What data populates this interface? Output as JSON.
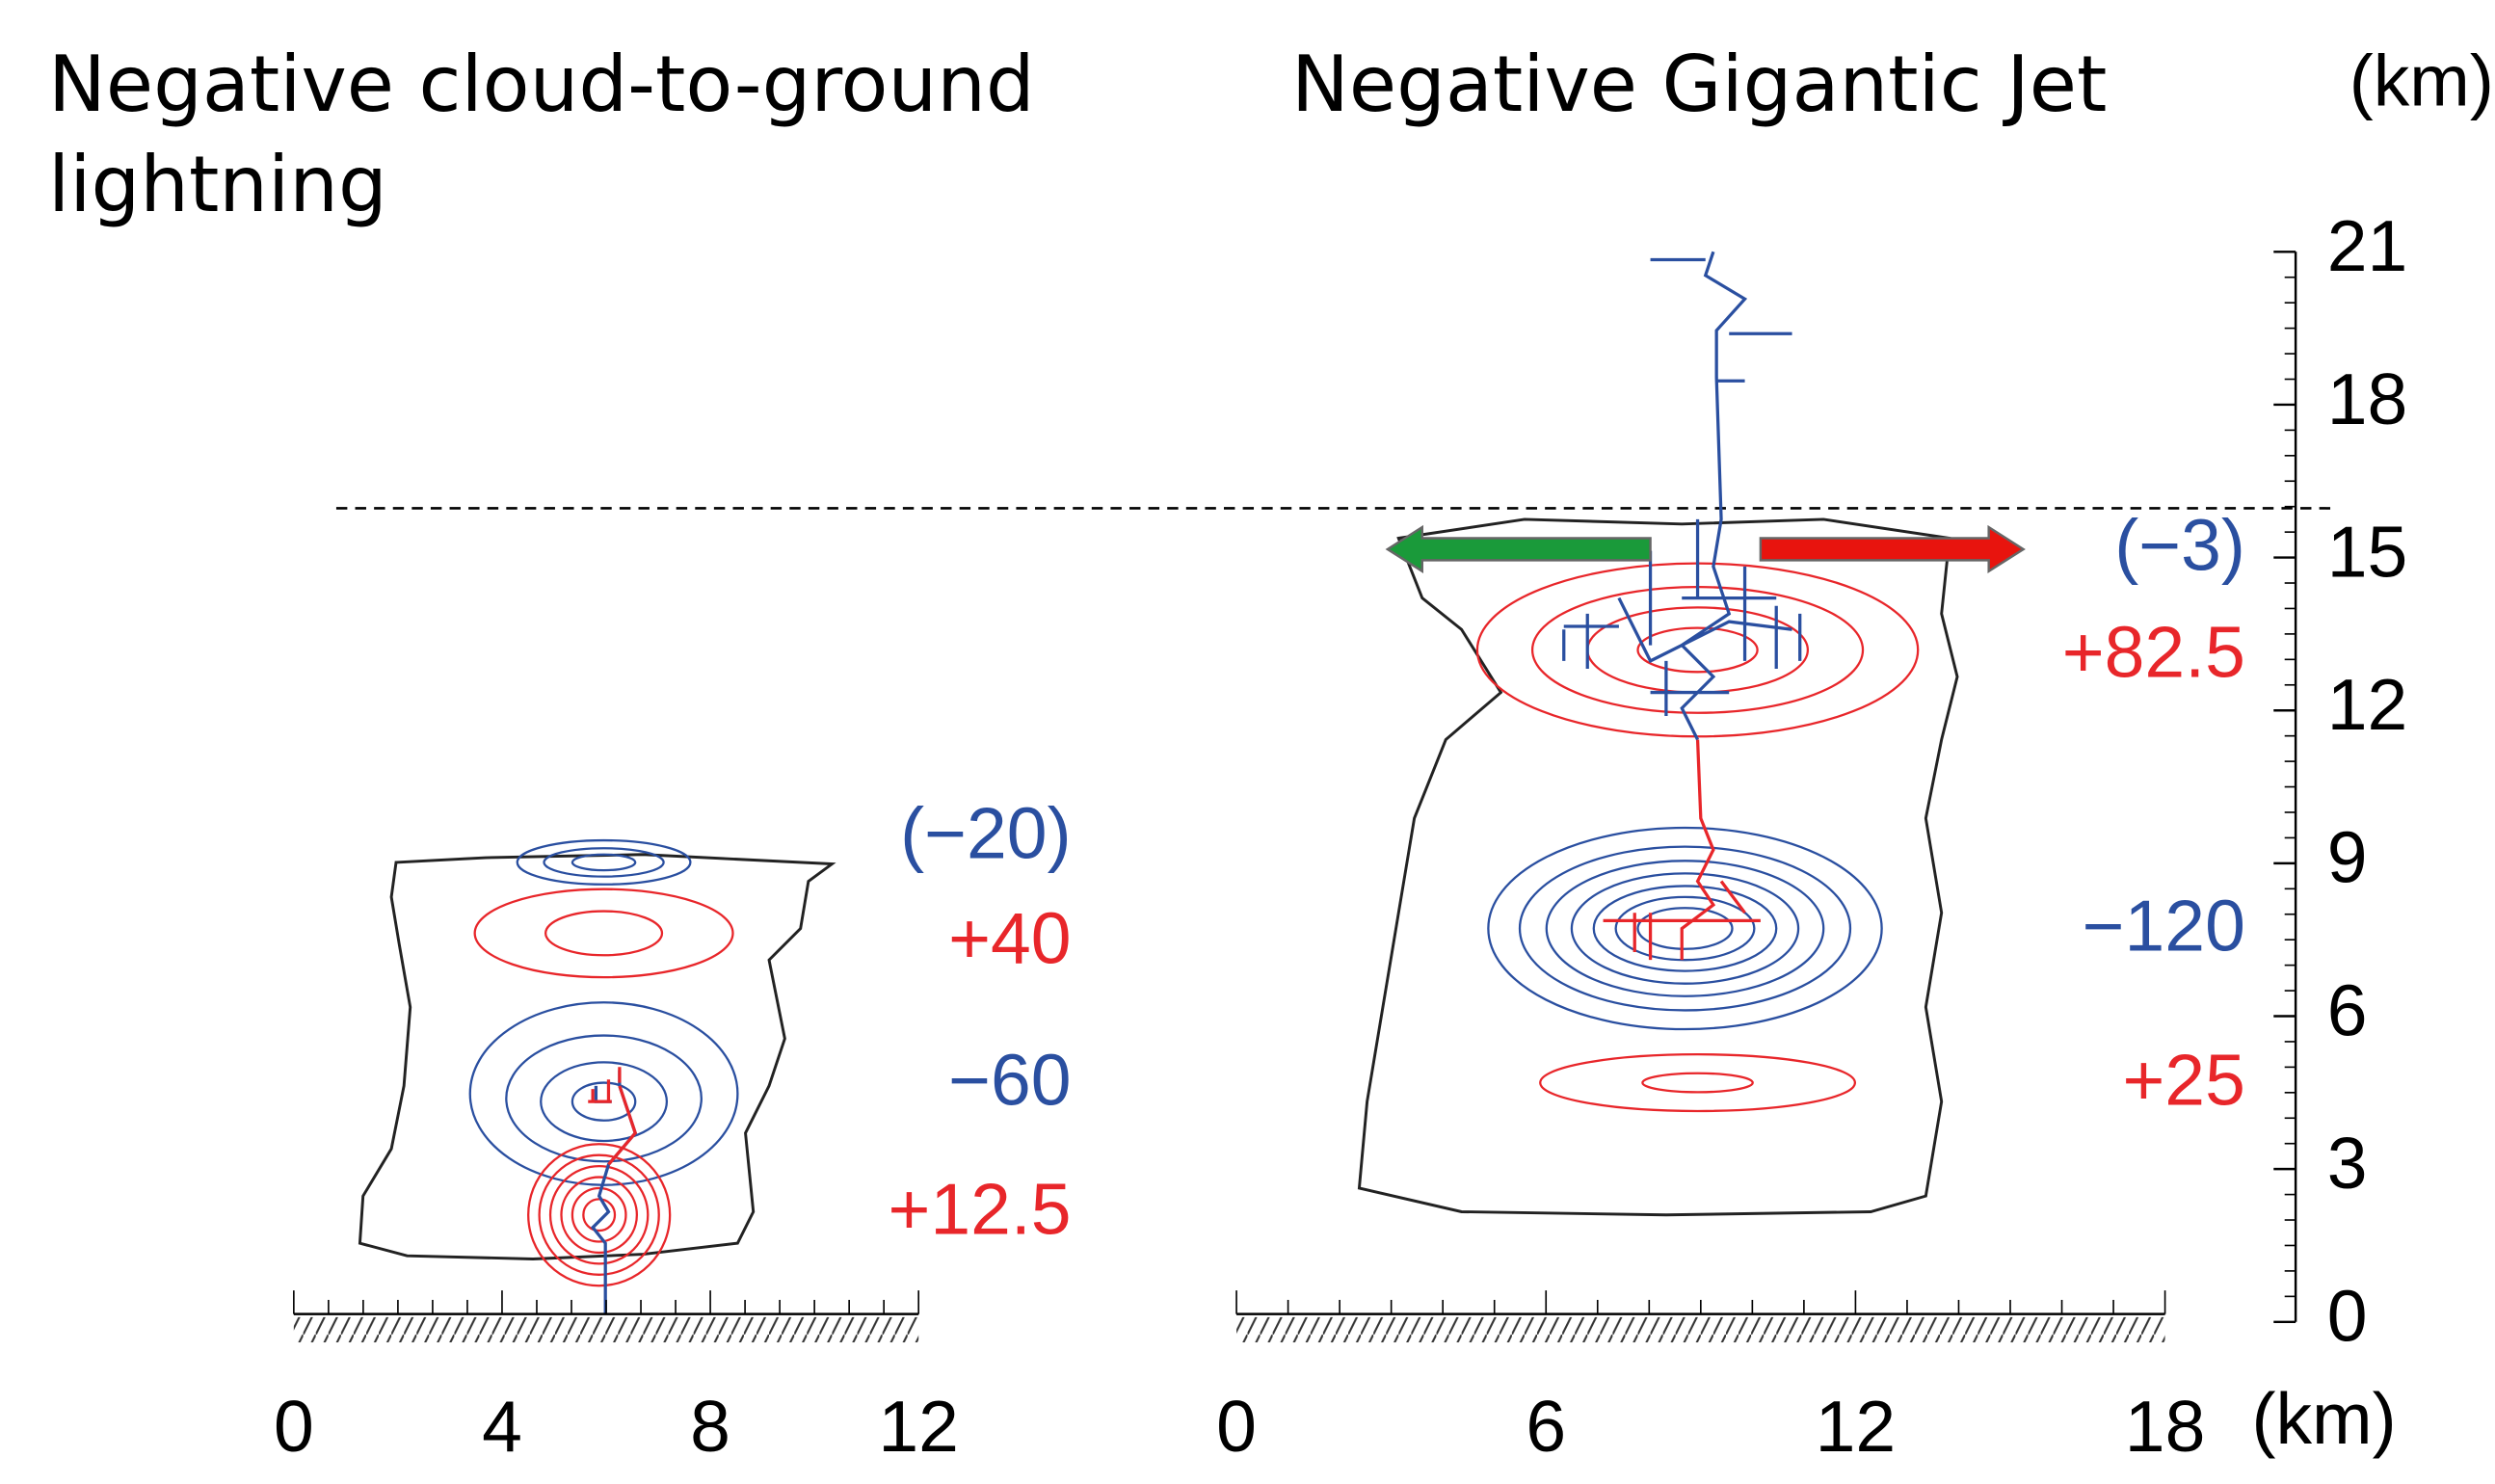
{
  "titles": {
    "left": "Negative cloud-to-ground lightning",
    "right": "Negative Gigantic Jet"
  },
  "y_axis": {
    "unit": "(km)",
    "ticks": [
      "0",
      "3",
      "6",
      "9",
      "12",
      "15",
      "18",
      "21"
    ]
  },
  "x_axis": {
    "unit": "(km)"
  },
  "left_panel": {
    "x_ticks": [
      "0",
      "4",
      "8",
      "12"
    ],
    "charges": [
      {
        "label": "(−20)",
        "color": "#2a4fa0"
      },
      {
        "label": "+40",
        "color": "#e8262a"
      },
      {
        "label": "−60",
        "color": "#2a4fa0"
      },
      {
        "label": "+12.5",
        "color": "#e8262a"
      }
    ]
  },
  "right_panel": {
    "x_ticks": [
      "0",
      "6",
      "12",
      "18"
    ],
    "charges": [
      {
        "label": "(−3)",
        "color": "#2a4fa0"
      },
      {
        "label": "+82.5",
        "color": "#e8262a"
      },
      {
        "label": "−120",
        "color": "#2a4fa0"
      },
      {
        "label": "+25",
        "color": "#e8262a"
      }
    ]
  }
}
